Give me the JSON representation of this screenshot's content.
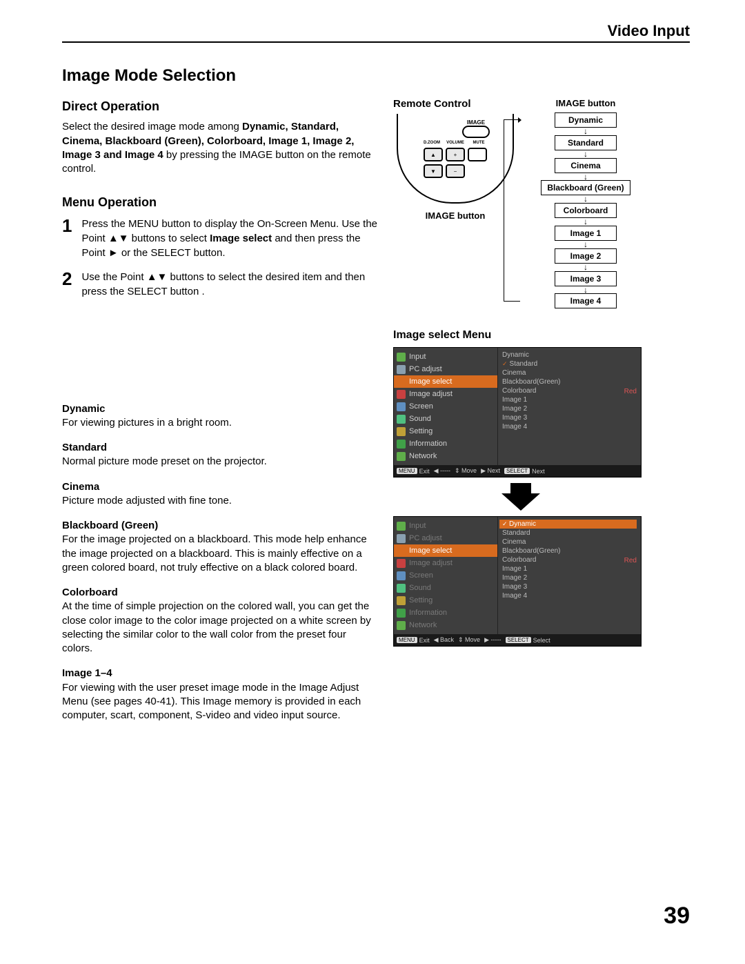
{
  "header": {
    "section": "Video Input"
  },
  "title": "Image Mode Selection",
  "direct": {
    "heading": "Direct Operation",
    "text_pre": "Select the desired image mode among ",
    "modes_inline": "Dynamic, Standard, Cinema, Blackboard (Green), Colorboard, Image 1, Image 2, Image 3 and Image 4",
    "text_post": " by pressing the IMAGE button on the remote control."
  },
  "menu": {
    "heading": "Menu Operation",
    "step1_a": "Press the MENU button to display the On-Screen Menu. Use the Point ▲▼ buttons to select ",
    "step1_bold": "Image  select",
    "step1_b": " and then press the Point ► or the SELECT button.",
    "step2": "Use the Point ▲▼ buttons to select  the desired item and then press the SELECT button ."
  },
  "remote": {
    "title": "Remote Control",
    "image_label": "IMAGE",
    "row_labels": [
      "D.ZOOM",
      "VOLUME",
      "MUTE"
    ],
    "caption": "IMAGE button"
  },
  "flow": {
    "title": "IMAGE button",
    "items": [
      "Dynamic",
      "Standard",
      "Cinema",
      "Blackboard (Green)",
      "Colorboard",
      "Image 1",
      "Image 2",
      "Image 3",
      "Image 4"
    ]
  },
  "modes": [
    {
      "t": "Dynamic",
      "d": "For viewing pictures in a bright room."
    },
    {
      "t": "Standard",
      "d": "Normal picture mode preset on the projector."
    },
    {
      "t": "Cinema",
      "d": "Picture mode adjusted with fine tone."
    },
    {
      "t": "Blackboard (Green)",
      "d": "For the image projected on a blackboard.\nThis mode help enhance the image projected on a blackboard. This is mainly effective on a green colored board, not truly effective on a black colored board."
    },
    {
      "t": "Colorboard",
      "d": "At the time of simple projection on the colored wall, you can get the close color image to the color image projected on a white screen by selecting the similar color to the wall color from the preset four colors."
    },
    {
      "t": "Image 1–4",
      "d": "For viewing with the user preset image mode in the Image Adjust Menu (see pages 40-41). This Image memory is provided in each computer, scart, component, S-video and video input source."
    }
  ],
  "osd": {
    "title": "Image select Menu",
    "left_items": [
      "Input",
      "PC adjust",
      "Image select",
      "Image adjust",
      "Screen",
      "Sound",
      "Setting",
      "Information",
      "Network"
    ],
    "left_colors": [
      "#5fae4a",
      "#8aa0b0",
      "#d86b1f",
      "#c84040",
      "#5f8fc0",
      "#50c080",
      "#c0a037",
      "#40a048",
      "#5fae4a"
    ],
    "right_items": [
      "Dynamic",
      "Standard",
      "Cinema",
      "Blackboard(Green)",
      "Colorboard",
      "Image 1",
      "Image 2",
      "Image 3",
      "Image 4"
    ],
    "right_tag": "Red",
    "foot1": [
      "MENU Exit",
      "◀ -----",
      "⇕ Move",
      "▶ Next",
      "SELECT Next"
    ],
    "foot2": [
      "MENU Exit",
      "◀ Back",
      "⇕ Move",
      "▶ -----",
      "SELECT Select"
    ]
  },
  "page_number": "39"
}
